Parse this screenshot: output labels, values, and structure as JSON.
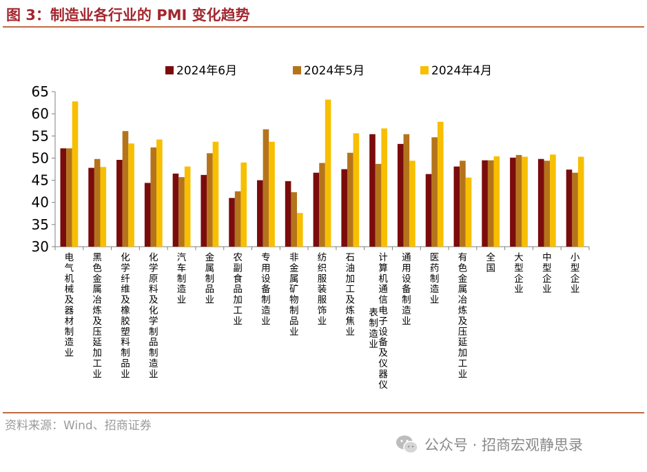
{
  "header": {
    "title": "图 3：制造业各行业的 PMI 变化趋势"
  },
  "footer": {
    "source": "资料来源：Wind、招商证券",
    "watermark": "公众号 · 招商宏观静思录",
    "watermark_icon": "wechat-icon"
  },
  "colors": {
    "series": [
      "#7b0c0c",
      "#b5741b",
      "#f7bf00"
    ],
    "title": "#a3272e",
    "rule": "#c06a40"
  },
  "chart_data": {
    "type": "bar",
    "title": "",
    "xlabel": "",
    "ylabel": "",
    "ylim": [
      30,
      65
    ],
    "yticks": [
      30,
      35,
      40,
      45,
      50,
      55,
      60,
      65
    ],
    "legend_position": "top",
    "grid": false,
    "categories": [
      "电气机械及器材制造业",
      "黑色金属冶炼及压延加工业",
      "化学纤维及橡胶塑料制品业",
      "化学原料及化学制品制造业",
      "汽车制造业",
      "金属制品业",
      "农副食品加工业",
      "专用设备制造业",
      "非金属矿物制品业",
      "纺织服装服饰业",
      "石油加工及炼焦业",
      "计算机通信电子设备及仪器仪表制造业",
      "通用设备制造业",
      "医药制造业",
      "有色金属冶炼及压延加工业",
      "全国",
      "大型企业",
      "中型企业",
      "小型企业"
    ],
    "series": [
      {
        "name": "2024年6月",
        "values": [
          52.2,
          47.8,
          49.6,
          44.4,
          46.5,
          46.2,
          41.0,
          45.0,
          44.8,
          46.7,
          47.5,
          55.4,
          53.2,
          46.4,
          48.1,
          49.5,
          50.1,
          49.8,
          47.4
        ]
      },
      {
        "name": "2024年5月",
        "values": [
          52.2,
          49.8,
          56.1,
          52.4,
          45.7,
          51.1,
          42.5,
          56.5,
          42.3,
          48.9,
          51.2,
          48.7,
          55.4,
          54.7,
          49.4,
          49.5,
          50.7,
          49.4,
          46.7
        ]
      },
      {
        "name": "2024年4月",
        "values": [
          62.8,
          48.0,
          53.3,
          54.2,
          48.1,
          53.7,
          49.0,
          53.7,
          37.6,
          63.2,
          55.6,
          56.7,
          49.4,
          58.2,
          45.6,
          50.4,
          50.3,
          50.8,
          50.3
        ]
      }
    ]
  }
}
